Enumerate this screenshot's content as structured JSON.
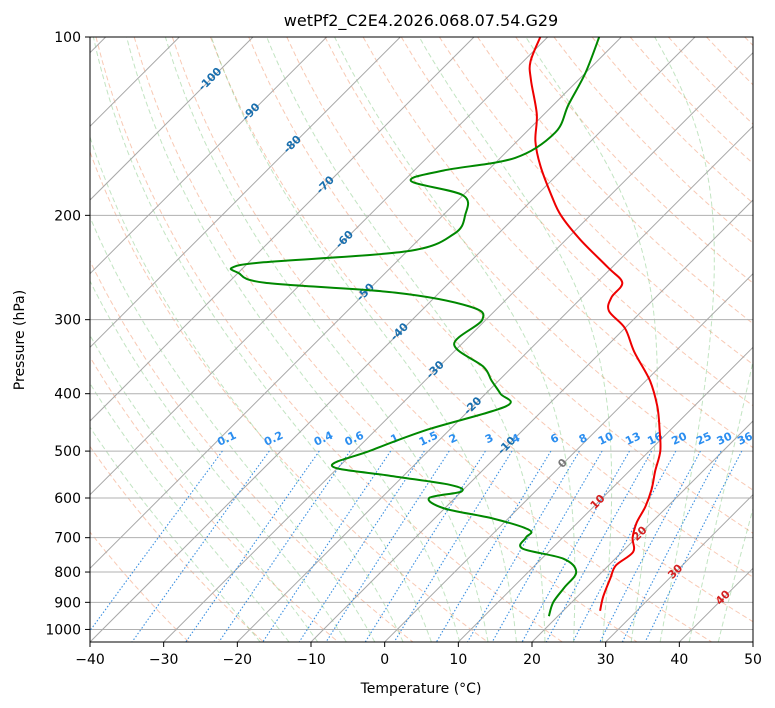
{
  "chart_data": {
    "type": "line",
    "title": "wetPf2_C2E4.2026.068.07.54.G29",
    "xlabel": "Temperature (°C)",
    "ylabel": "Pressure (hPa)",
    "xlim": [
      -40,
      50
    ],
    "ylim": [
      1050,
      100
    ],
    "y_scale": "log",
    "grid": true,
    "x_ticks": [
      -40,
      -30,
      -20,
      -10,
      0,
      10,
      20,
      30,
      40,
      50
    ],
    "y_ticks": [
      100,
      200,
      300,
      400,
      500,
      600,
      700,
      800,
      900,
      1000
    ],
    "series": [
      {
        "color": "#ee0000",
        "points": [
          {
            "p": 930,
            "t": 25.0
          },
          {
            "p": 880,
            "t": 23.5
          },
          {
            "p": 820,
            "t": 22.0
          },
          {
            "p": 780,
            "t": 21.0
          },
          {
            "p": 740,
            "t": 21.5
          },
          {
            "p": 700,
            "t": 19.5
          },
          {
            "p": 660,
            "t": 18.0
          },
          {
            "p": 620,
            "t": 17.0
          },
          {
            "p": 580,
            "t": 15.5
          },
          {
            "p": 540,
            "t": 13.5
          },
          {
            "p": 500,
            "t": 11.5
          },
          {
            "p": 460,
            "t": 8.5
          },
          {
            "p": 420,
            "t": 5.0
          },
          {
            "p": 380,
            "t": 0.5
          },
          {
            "p": 340,
            "t": -5.5
          },
          {
            "p": 310,
            "t": -10.0
          },
          {
            "p": 290,
            "t": -14.5
          },
          {
            "p": 275,
            "t": -16.0
          },
          {
            "p": 260,
            "t": -16.5
          },
          {
            "p": 245,
            "t": -20.5
          },
          {
            "p": 220,
            "t": -28.0
          },
          {
            "p": 200,
            "t": -34.0
          },
          {
            "p": 185,
            "t": -38.0
          },
          {
            "p": 165,
            "t": -43.5
          },
          {
            "p": 150,
            "t": -47.5
          },
          {
            "p": 135,
            "t": -51.0
          },
          {
            "p": 118,
            "t": -56.5
          },
          {
            "p": 110,
            "t": -59.0
          },
          {
            "p": 100,
            "t": -61.0
          }
        ]
      },
      {
        "color": "#008800",
        "points": [
          {
            "p": 950,
            "t": 18.8
          },
          {
            "p": 900,
            "t": 17.5
          },
          {
            "p": 850,
            "t": 17.0
          },
          {
            "p": 800,
            "t": 16.5
          },
          {
            "p": 760,
            "t": 13.0
          },
          {
            "p": 730,
            "t": 6.0
          },
          {
            "p": 700,
            "t": 5.0
          },
          {
            "p": 680,
            "t": 4.5
          },
          {
            "p": 650,
            "t": -2.0
          },
          {
            "p": 625,
            "t": -10.0
          },
          {
            "p": 600,
            "t": -13.5
          },
          {
            "p": 585,
            "t": -10.0
          },
          {
            "p": 570,
            "t": -12.5
          },
          {
            "p": 550,
            "t": -22.0
          },
          {
            "p": 530,
            "t": -31.0
          },
          {
            "p": 500,
            "t": -28.0
          },
          {
            "p": 460,
            "t": -23.0
          },
          {
            "p": 420,
            "t": -15.5
          },
          {
            "p": 400,
            "t": -18.0
          },
          {
            "p": 380,
            "t": -21.0
          },
          {
            "p": 360,
            "t": -24.0
          },
          {
            "p": 330,
            "t": -31.0
          },
          {
            "p": 300,
            "t": -30.5
          },
          {
            "p": 285,
            "t": -34.0
          },
          {
            "p": 270,
            "t": -46.0
          },
          {
            "p": 260,
            "t": -65.0
          },
          {
            "p": 250,
            "t": -70.0
          },
          {
            "p": 245,
            "t": -71.5
          },
          {
            "p": 240,
            "t": -68.0
          },
          {
            "p": 230,
            "t": -50.0
          },
          {
            "p": 215,
            "t": -46.0
          },
          {
            "p": 200,
            "t": -47.0
          },
          {
            "p": 185,
            "t": -50.0
          },
          {
            "p": 175,
            "t": -59.0
          },
          {
            "p": 168,
            "t": -56.0
          },
          {
            "p": 160,
            "t": -48.0
          },
          {
            "p": 145,
            "t": -46.0
          },
          {
            "p": 130,
            "t": -48.0
          },
          {
            "p": 115,
            "t": -50.0
          },
          {
            "p": 100,
            "t": -53.0
          }
        ]
      }
    ],
    "isotherm_labels": [
      "-100",
      "-90",
      "-80",
      "-70",
      "-60",
      "-50",
      "-40",
      "-30",
      "-20",
      "-10",
      "0",
      "10",
      "20",
      "30",
      "40"
    ],
    "mixing_ratio_labels": [
      "0.1",
      "0.2",
      "0.4",
      "0.6",
      "1",
      "1.5",
      "2",
      "3",
      "4",
      "6",
      "8",
      "10",
      "13",
      "16",
      "20",
      "25",
      "30",
      "36"
    ]
  }
}
